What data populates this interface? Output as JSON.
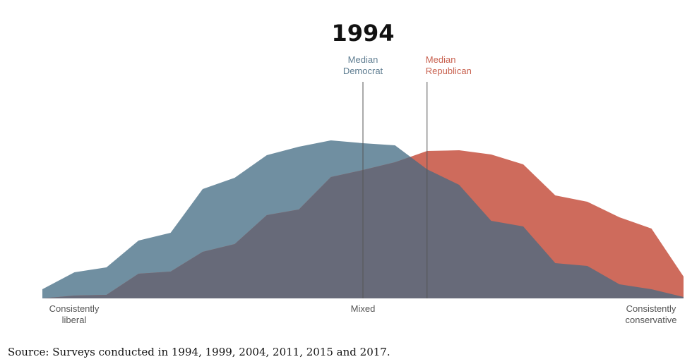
{
  "chart_data": {
    "type": "area",
    "title": "1994",
    "xlabel": "",
    "ylabel": "",
    "x_tick_labels": [
      {
        "position": 0,
        "lines": [
          "Consistently",
          "liberal"
        ]
      },
      {
        "position": 10,
        "lines": [
          "Mixed"
        ]
      },
      {
        "position": 20,
        "lines": [
          "Consistently",
          "conservative"
        ]
      }
    ],
    "x": [
      0,
      1,
      2,
      3,
      4,
      5,
      6,
      7,
      8,
      9,
      10,
      11,
      12,
      13,
      14,
      15,
      16,
      17,
      18,
      19,
      20
    ],
    "ylim": [
      0,
      230
    ],
    "grid": false,
    "series": [
      {
        "name": "Democrats",
        "color": "#708fa1",
        "values": [
          13,
          37,
          44,
          82,
          93,
          155,
          171,
          203,
          215,
          224,
          220,
          217,
          183,
          161,
          110,
          102,
          50,
          46,
          20,
          13,
          2
        ]
      },
      {
        "name": "Republicans",
        "color": "#ce6b5c",
        "values": [
          0,
          4,
          5,
          35,
          38,
          66,
          77,
          118,
          126,
          172,
          182,
          193,
          209,
          210,
          204,
          190,
          146,
          137,
          115,
          99,
          31
        ]
      }
    ],
    "overlap_color": "#676a79",
    "annotations": [
      {
        "label_lines": [
          "Median",
          "Democrat"
        ],
        "x": 10.0,
        "color": "#5f7d91"
      },
      {
        "label_lines": [
          "Median",
          "Republican"
        ],
        "x": 12.0,
        "color": "#c8614f"
      }
    ]
  },
  "source": "Source: Surveys conducted in 1994, 1999, 2004, 2011, 2015 and 2017."
}
